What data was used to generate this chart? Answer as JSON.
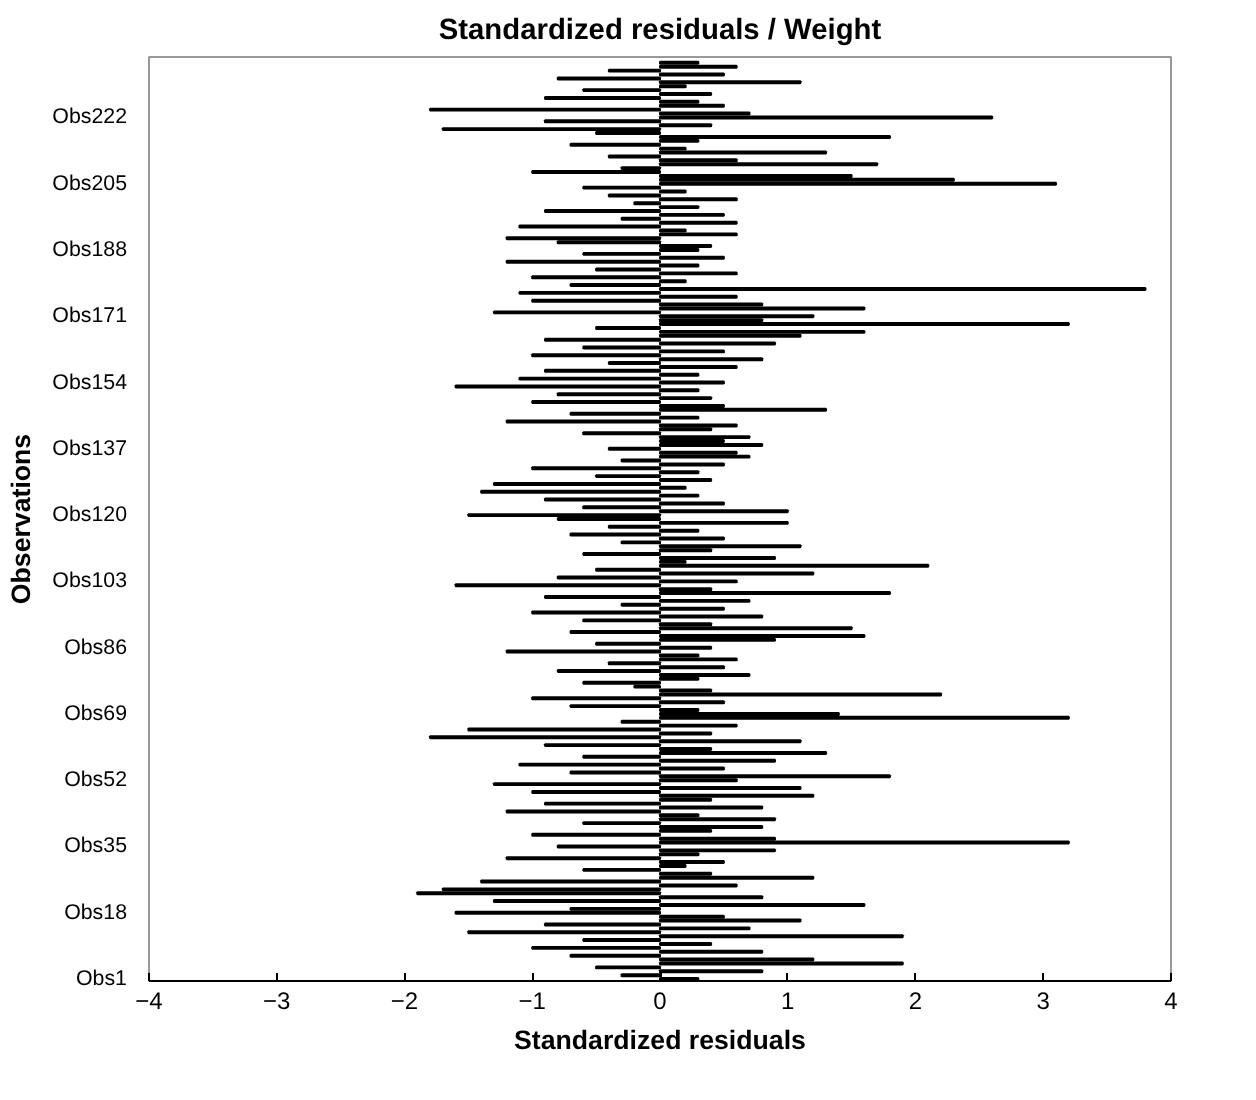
{
  "chart_data": {
    "type": "bar",
    "orientation": "horizontal",
    "title": "Standardized residuals / Weight",
    "xlabel": "Standardized residuals",
    "ylabel": "Observations",
    "xlim": [
      -4,
      4
    ],
    "xticks": [
      -4,
      -3,
      -2,
      -1,
      0,
      1,
      2,
      3,
      4
    ],
    "grid": false,
    "color": "#000000",
    "categories": [
      null,
      null,
      null,
      null,
      null,
      null,
      null,
      null,
      null,
      null,
      null,
      null,
      null,
      null,
      "Obs222",
      null,
      null,
      null,
      null,
      null,
      null,
      null,
      null,
      null,
      null,
      null,
      null,
      null,
      null,
      null,
      null,
      "Obs205",
      null,
      null,
      null,
      null,
      null,
      null,
      null,
      null,
      null,
      null,
      null,
      null,
      null,
      null,
      null,
      null,
      "Obs188",
      null,
      null,
      null,
      null,
      null,
      null,
      null,
      null,
      null,
      null,
      null,
      null,
      null,
      null,
      null,
      null,
      "Obs171",
      null,
      null,
      null,
      null,
      null,
      null,
      null,
      null,
      null,
      null,
      null,
      null,
      null,
      null,
      null,
      null,
      "Obs154",
      null,
      null,
      null,
      null,
      null,
      null,
      null,
      null,
      null,
      null,
      null,
      null,
      null,
      null,
      null,
      null,
      "Obs137",
      null,
      null,
      null,
      null,
      null,
      null,
      null,
      null,
      null,
      null,
      null,
      null,
      null,
      null,
      null,
      null,
      "Obs120",
      null,
      null,
      null,
      null,
      null,
      null,
      null,
      null,
      null,
      null,
      null,
      null,
      null,
      null,
      null,
      null,
      "Obs103",
      null,
      null,
      null,
      null,
      null,
      null,
      null,
      null,
      null,
      null,
      null,
      null,
      null,
      null,
      null,
      null,
      "Obs86",
      null,
      null,
      null,
      null,
      null,
      null,
      null,
      null,
      null,
      null,
      null,
      null,
      null,
      null,
      null,
      null,
      "Obs69",
      null,
      null,
      null,
      null,
      null,
      null,
      null,
      null,
      null,
      null,
      null,
      null,
      null,
      null,
      null,
      null,
      "Obs52",
      null,
      null,
      null,
      null,
      null,
      null,
      null,
      null,
      null,
      null,
      null,
      null,
      null,
      null,
      null,
      null,
      "Obs35",
      null,
      null,
      null,
      null,
      null,
      null,
      null,
      null,
      null,
      null,
      null,
      null,
      null,
      null,
      null,
      null,
      "Obs18",
      null,
      null,
      null,
      null,
      null,
      null,
      null,
      null,
      null,
      null,
      null,
      null,
      null,
      null,
      null,
      null,
      "Obs1"
    ],
    "values": [
      0.3,
      0.6,
      -0.4,
      0.5,
      -0.8,
      1.1,
      0.2,
      -0.6,
      0.4,
      -0.9,
      0.3,
      0.5,
      -1.8,
      0.7,
      2.6,
      -0.9,
      0.4,
      -1.7,
      -0.5,
      1.8,
      0.3,
      -0.7,
      0.2,
      1.3,
      -0.4,
      0.6,
      1.7,
      -0.3,
      -1.0,
      1.5,
      2.3,
      3.1,
      -0.6,
      0.2,
      -0.4,
      0.6,
      -0.2,
      0.3,
      -0.9,
      0.5,
      -0.3,
      0.6,
      -1.1,
      0.2,
      0.6,
      -1.2,
      -0.8,
      0.4,
      0.3,
      -0.6,
      0.5,
      -1.2,
      0.3,
      -0.5,
      0.6,
      -1.0,
      0.2,
      -0.7,
      3.8,
      -1.1,
      0.6,
      -1.0,
      0.8,
      1.6,
      -1.3,
      1.2,
      0.8,
      3.2,
      -0.5,
      1.6,
      1.1,
      -0.9,
      0.9,
      -0.6,
      0.5,
      -1.0,
      0.8,
      -0.4,
      0.6,
      -0.9,
      0.3,
      -1.1,
      0.5,
      -1.6,
      0.3,
      -0.8,
      0.4,
      -1.0,
      0.5,
      1.3,
      -0.7,
      0.3,
      -1.2,
      0.6,
      0.4,
      -0.6,
      0.7,
      0.5,
      0.8,
      -0.4,
      0.6,
      0.7,
      -0.3,
      0.5,
      -1.0,
      0.3,
      -0.5,
      0.4,
      -1.3,
      0.2,
      -1.4,
      0.3,
      -0.9,
      0.5,
      -0.6,
      1.0,
      -1.5,
      -0.8,
      1.0,
      -0.4,
      0.3,
      -0.7,
      0.5,
      -0.3,
      1.1,
      0.4,
      -0.6,
      0.9,
      0.2,
      2.1,
      -0.5,
      1.2,
      -0.8,
      0.6,
      -1.6,
      0.4,
      1.8,
      -0.9,
      0.7,
      -0.3,
      0.5,
      -1.0,
      0.8,
      -0.6,
      0.4,
      1.5,
      -0.7,
      1.6,
      0.9,
      -0.5,
      0.4,
      -1.2,
      0.3,
      0.6,
      -0.4,
      0.5,
      -0.8,
      0.7,
      0.3,
      -0.6,
      -0.2,
      0.4,
      2.2,
      -1.0,
      0.5,
      -0.7,
      0.3,
      1.4,
      3.2,
      -0.3,
      0.6,
      -1.5,
      0.4,
      -1.8,
      1.1,
      -0.9,
      0.4,
      1.3,
      -0.6,
      0.9,
      -1.1,
      0.5,
      -0.7,
      1.8,
      0.6,
      -1.3,
      1.1,
      -1.0,
      1.2,
      0.4,
      -0.9,
      0.8,
      -1.2,
      0.3,
      0.9,
      -0.6,
      0.8,
      0.4,
      -1.0,
      0.9,
      3.2,
      -0.8,
      0.9,
      0.3,
      -1.2,
      0.5,
      0.2,
      -0.6,
      0.4,
      1.2,
      -1.4,
      0.6,
      -1.7,
      -1.9,
      0.8,
      -1.3,
      1.6,
      -0.7,
      -1.6,
      0.5,
      1.1,
      -0.9,
      0.7,
      -1.5,
      1.9,
      -0.6,
      0.4,
      -1.0,
      0.8,
      -0.7,
      1.2,
      1.9,
      -0.5,
      0.8,
      -0.3,
      0.3
    ]
  }
}
